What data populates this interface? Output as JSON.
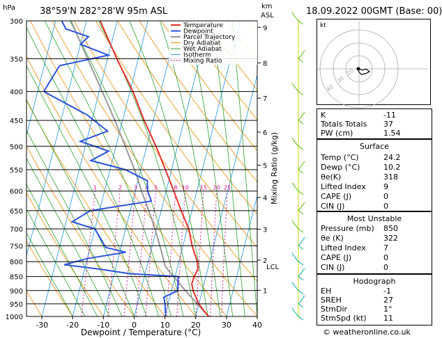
{
  "header": {
    "location": "38°59'N  282°28'W  95m  ASL",
    "datetime": "18.09.2022  00GMT  (Base: 00)",
    "unit_hpa": "hPa",
    "unit_km": "km",
    "unit_asl": "ASL"
  },
  "chart_data": {
    "type": "skewt",
    "xlabel": "Dewpoint / Temperature (°C)",
    "ylabel_right": "Mixing Ratio (g/kg)",
    "xlim": [
      -35,
      40
    ],
    "ylim": [
      1000,
      300
    ],
    "pressure_ticks": [
      300,
      350,
      400,
      450,
      500,
      550,
      600,
      650,
      700,
      750,
      800,
      850,
      900,
      950,
      1000
    ],
    "temp_ticks": [
      -30,
      -20,
      -10,
      0,
      10,
      20,
      30,
      40
    ],
    "km_ticks": [
      {
        "label": "9",
        "p": 308
      },
      {
        "label": "8",
        "p": 356
      },
      {
        "label": "7",
        "p": 411
      },
      {
        "label": "6",
        "p": 472
      },
      {
        "label": "5",
        "p": 540
      },
      {
        "label": "4",
        "p": 616
      },
      {
        "label": "3",
        "p": 701
      },
      {
        "label": "2",
        "p": 795
      },
      {
        "label": "1",
        "p": 899
      }
    ],
    "lcl": {
      "label": "LCL",
      "p": 816
    },
    "mixing_ratio_labels": [
      "1",
      "2",
      "3",
      "4",
      "5",
      "8",
      "10",
      "15",
      "20",
      "25"
    ],
    "legend": [
      "Temperature",
      "Dewpoint",
      "Parcel Trajectory",
      "Dry Adiabat",
      "Wet Adiabat",
      "Isotherm",
      "Mixing Ratio"
    ],
    "colors": {
      "temperature": "#e8312a",
      "dewpoint": "#2a52e0",
      "parcel": "#999999",
      "dry_adiabat": "#e88a00",
      "wet_adiabat": "#2ca02c",
      "isotherm": "#33a0e0",
      "mixing_ratio": "#d4008a"
    },
    "temperature_profile": [
      {
        "p": 1000,
        "t": 24.2
      },
      {
        "p": 975,
        "t": 22.0
      },
      {
        "p": 950,
        "t": 20.0
      },
      {
        "p": 925,
        "t": 18.5
      },
      {
        "p": 900,
        "t": 17.0
      },
      {
        "p": 875,
        "t": 16.0
      },
      {
        "p": 850,
        "t": 16.2
      },
      {
        "p": 825,
        "t": 16.8
      },
      {
        "p": 800,
        "t": 16.0
      },
      {
        "p": 775,
        "t": 14.5
      },
      {
        "p": 750,
        "t": 13.0
      },
      {
        "p": 700,
        "t": 10.5
      },
      {
        "p": 650,
        "t": 6.5
      },
      {
        "p": 600,
        "t": 2.5
      },
      {
        "p": 550,
        "t": -2.0
      },
      {
        "p": 500,
        "t": -7.0
      },
      {
        "p": 450,
        "t": -13.0
      },
      {
        "p": 400,
        "t": -19.0
      },
      {
        "p": 350,
        "t": -27.0
      },
      {
        "p": 300,
        "t": -35.5
      }
    ],
    "dewpoint_profile": [
      {
        "p": 1000,
        "t": 10.2
      },
      {
        "p": 950,
        "t": 9.0
      },
      {
        "p": 925,
        "t": 8.0
      },
      {
        "p": 900,
        "t": 12.0
      },
      {
        "p": 875,
        "t": 11.5
      },
      {
        "p": 850,
        "t": 11.0
      },
      {
        "p": 840,
        "t": -5.0
      },
      {
        "p": 825,
        "t": -15.0
      },
      {
        "p": 810,
        "t": -27.0
      },
      {
        "p": 790,
        "t": -20.0
      },
      {
        "p": 770,
        "t": -8.0
      },
      {
        "p": 755,
        "t": -15.0
      },
      {
        "p": 700,
        "t": -20.0
      },
      {
        "p": 680,
        "t": -28.0
      },
      {
        "p": 650,
        "t": -23.0
      },
      {
        "p": 625,
        "t": -4.0
      },
      {
        "p": 600,
        "t": -6.0
      },
      {
        "p": 575,
        "t": -7.0
      },
      {
        "p": 550,
        "t": -15.0
      },
      {
        "p": 530,
        "t": -27.0
      },
      {
        "p": 510,
        "t": -22.0
      },
      {
        "p": 490,
        "t": -32.0
      },
      {
        "p": 470,
        "t": -24.0
      },
      {
        "p": 440,
        "t": -32.0
      },
      {
        "p": 400,
        "t": -48.0
      },
      {
        "p": 360,
        "t": -45.0
      },
      {
        "p": 345,
        "t": -30.0
      },
      {
        "p": 330,
        "t": -40.0
      },
      {
        "p": 320,
        "t": -38.0
      },
      {
        "p": 310,
        "t": -46.0
      },
      {
        "p": 300,
        "t": -48.0
      }
    ],
    "parcel_profile": [
      {
        "p": 1000,
        "t": 24.2
      },
      {
        "p": 950,
        "t": 19.5
      },
      {
        "p": 900,
        "t": 14.5
      },
      {
        "p": 850,
        "t": 9.5
      },
      {
        "p": 816,
        "t": 6.0
      },
      {
        "p": 750,
        "t": 2.5
      },
      {
        "p": 700,
        "t": -0.5
      },
      {
        "p": 650,
        "t": -4.0
      },
      {
        "p": 600,
        "t": -8.0
      },
      {
        "p": 550,
        "t": -12.0
      },
      {
        "p": 500,
        "t": -17.0
      },
      {
        "p": 450,
        "t": -22.5
      },
      {
        "p": 400,
        "t": -29.0
      },
      {
        "p": 350,
        "t": -36.5
      },
      {
        "p": 300,
        "t": -45.0
      }
    ]
  },
  "indices": {
    "rows": [
      {
        "key": "K",
        "value": "-11"
      },
      {
        "key": "Totals Totals",
        "value": "37"
      },
      {
        "key": "PW (cm)",
        "value": "1.54"
      }
    ]
  },
  "surface": {
    "title": "Surface",
    "rows": [
      {
        "key": "Temp (°C)",
        "value": "24.2"
      },
      {
        "key": "Dewp (°C)",
        "value": "10.2"
      },
      {
        "key": "θe(K)",
        "value": "318"
      },
      {
        "key": "Lifted Index",
        "value": "9"
      },
      {
        "key": "CAPE (J)",
        "value": "0"
      },
      {
        "key": "CIN (J)",
        "value": "0"
      }
    ]
  },
  "most_unstable": {
    "title": "Most Unstable",
    "rows": [
      {
        "key": "Pressure (mb)",
        "value": "850"
      },
      {
        "key": "θe (K)",
        "value": "322"
      },
      {
        "key": "Lifted Index",
        "value": "7"
      },
      {
        "key": "CAPE (J)",
        "value": "0"
      },
      {
        "key": "CIN (J)",
        "value": "0"
      }
    ]
  },
  "hodograph": {
    "title": "Hodograph",
    "unit": "kt",
    "ring_labels": [
      "40",
      "30",
      "20"
    ],
    "rows": [
      {
        "key": "EH",
        "value": "-1"
      },
      {
        "key": "SREH",
        "value": "27"
      },
      {
        "key": "StmDir",
        "value": "1°"
      },
      {
        "key": "StmSpd (kt)",
        "value": "11"
      }
    ]
  },
  "copyright": "© weatheronline.co.uk"
}
